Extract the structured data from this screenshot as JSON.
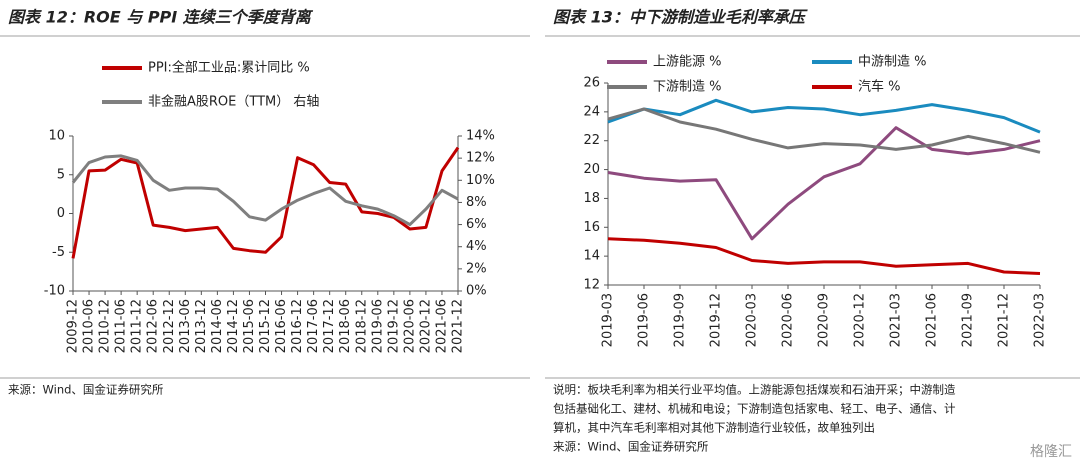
{
  "chart_data": [
    {
      "type": "line",
      "title": "图表 12：ROE 与 PPI 连续三个季度背离",
      "categories": [
        "2009-12",
        "2010-06",
        "2010-12",
        "2011-06",
        "2011-12",
        "2012-06",
        "2012-12",
        "2013-06",
        "2013-12",
        "2014-06",
        "2014-12",
        "2015-06",
        "2015-12",
        "2016-06",
        "2016-12",
        "2017-06",
        "2017-12",
        "2018-06",
        "2018-12",
        "2019-06",
        "2019-12",
        "2020-06",
        "2020-12",
        "2021-06",
        "2021-12"
      ],
      "series": [
        {
          "name": "PPI:全部工业品:累计同比 %",
          "color": "#c00000",
          "values": [
            -5.8,
            5.5,
            5.6,
            7.0,
            6.5,
            -1.5,
            -1.8,
            -2.2,
            -2.0,
            -1.8,
            -4.5,
            -4.8,
            -5.0,
            -3.0,
            7.2,
            6.3,
            4.0,
            3.8,
            0.2,
            0.0,
            -0.5,
            -2.0,
            -1.8,
            5.5,
            8.5
          ]
        },
        {
          "name": "非金融A股ROE（TTM） 右轴",
          "color": "#7f7f7f",
          "axis": "y2",
          "values": [
            9.8,
            11.6,
            12.1,
            12.2,
            11.8,
            10.0,
            9.1,
            9.3,
            9.3,
            9.2,
            8.1,
            6.7,
            6.4,
            7.4,
            8.2,
            8.8,
            9.3,
            8.1,
            7.7,
            7.4,
            6.8,
            6.0,
            7.4,
            9.1,
            8.3
          ]
        }
      ],
      "ylim": [
        -10,
        10
      ],
      "yticks": [
        -10,
        -5,
        0,
        5,
        10
      ],
      "y2lim": [
        0,
        14
      ],
      "y2ticks": [
        {
          "value": 0,
          "label": "0%"
        },
        {
          "value": 2,
          "label": "2%"
        },
        {
          "value": 4,
          "label": "4%"
        },
        {
          "value": 6,
          "label": "6%"
        },
        {
          "value": 8,
          "label": "8%"
        },
        {
          "value": 10,
          "label": "10%"
        },
        {
          "value": 12,
          "label": "12%"
        },
        {
          "value": 14,
          "label": "14%"
        }
      ],
      "grid": false,
      "source": "来源：Wind、国金证券研究所"
    },
    {
      "type": "line",
      "title": "图表 13：中下游制造业毛利率承压",
      "categories": [
        "2019-03",
        "2019-06",
        "2019-09",
        "2019-12",
        "2020-03",
        "2020-06",
        "2020-09",
        "2020-12",
        "2021-03",
        "2021-06",
        "2021-09",
        "2021-12",
        "2022-03"
      ],
      "series": [
        {
          "name": "上游能源 %",
          "color": "#8e4a7e",
          "values": [
            19.8,
            19.4,
            19.2,
            19.3,
            15.2,
            17.6,
            19.5,
            20.4,
            22.9,
            21.4,
            21.1,
            21.4,
            22.0
          ]
        },
        {
          "name": "中游制造 %",
          "color": "#1a8bbf",
          "values": [
            23.3,
            24.2,
            23.8,
            24.8,
            24.0,
            24.3,
            24.2,
            23.8,
            24.1,
            24.5,
            24.1,
            23.6,
            22.6
          ]
        },
        {
          "name": "下游制造 %",
          "color": "#777777",
          "values": [
            23.5,
            24.2,
            23.3,
            22.8,
            22.1,
            21.5,
            21.8,
            21.7,
            21.4,
            21.7,
            22.3,
            21.8,
            21.2
          ]
        },
        {
          "name": "汽车 %",
          "color": "#c00000",
          "values": [
            15.2,
            15.1,
            14.9,
            14.6,
            13.7,
            13.5,
            13.6,
            13.6,
            13.3,
            13.4,
            13.5,
            12.9,
            12.8
          ]
        }
      ],
      "ylim": [
        12,
        26
      ],
      "yticks": [
        12,
        14,
        16,
        18,
        20,
        22,
        24,
        26
      ],
      "grid": false,
      "notes": [
        "说明：板块毛利率为相关行业平均值。上游能源包括煤炭和石油开采；中游制造",
        "包括基础化工、建材、机械和电设；下游制造包括家电、轻工、电子、通信、计",
        "算机，其中汽车毛利率相对其他下游制造行业较低，故单独列出"
      ],
      "source": "来源：Wind、国金证券研究所",
      "watermark": "格隆汇"
    }
  ]
}
